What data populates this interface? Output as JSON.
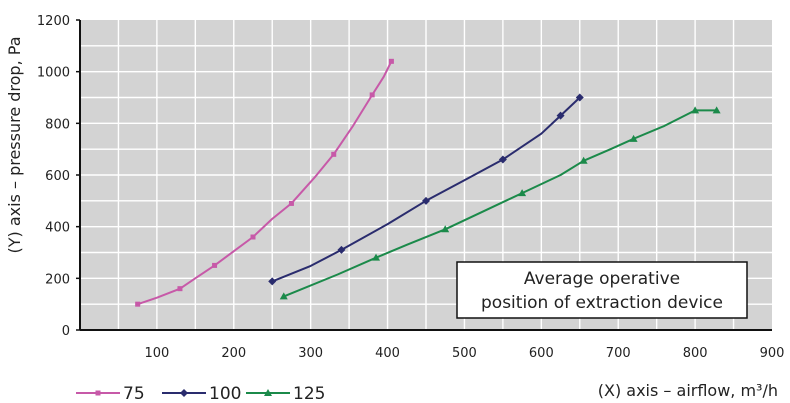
{
  "chart_data": {
    "type": "line",
    "title": "",
    "xlabel": "(X) axis – airflow, m³/h",
    "ylabel": "(Y) axis – pressure drop, Pa",
    "xlim": [
      0,
      900
    ],
    "ylim": [
      0,
      1200
    ],
    "x_ticks": [
      100,
      200,
      300,
      400,
      500,
      600,
      700,
      800,
      900
    ],
    "y_ticks": [
      0,
      200,
      400,
      600,
      800,
      1000,
      1200
    ],
    "grid": true,
    "background_color": "#d3d3d3",
    "legend_position": "bottom-left",
    "series": [
      {
        "name": "75",
        "color": "#c759a8",
        "marker": "square",
        "x": [
          75,
          100,
          130,
          150,
          175,
          200,
          225,
          250,
          275,
          305,
          330,
          355,
          380,
          395,
          405
        ],
        "y": [
          100,
          125,
          160,
          200,
          250,
          305,
          360,
          430,
          490,
          590,
          680,
          790,
          910,
          980,
          1040
        ]
      },
      {
        "name": "100",
        "color": "#2a2c6e",
        "marker": "diamond",
        "x": [
          250,
          300,
          340,
          400,
          450,
          500,
          550,
          600,
          625,
          650
        ],
        "y": [
          188,
          248,
          310,
          410,
          500,
          580,
          660,
          760,
          830,
          900
        ]
      },
      {
        "name": "125",
        "color": "#1b8a4a",
        "marker": "triangle",
        "x": [
          265,
          335,
          385,
          425,
          475,
          525,
          575,
          625,
          655,
          690,
          720,
          760,
          800,
          828
        ],
        "y": [
          130,
          215,
          280,
          330,
          390,
          460,
          530,
          600,
          655,
          700,
          740,
          790,
          850,
          850
        ]
      }
    ],
    "annotation": {
      "lines": [
        "Average operative",
        "position of extraction device"
      ]
    }
  }
}
